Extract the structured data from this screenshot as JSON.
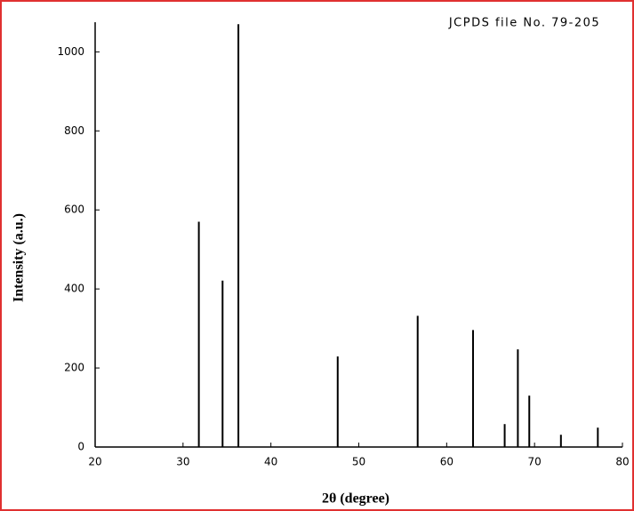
{
  "chart_data": {
    "type": "stick",
    "annotation": "JCPDS file No. 79-205",
    "x_label": "2θ (degree)",
    "y_label": "Intensity (a.u.)",
    "x": [
      31.8,
      34.5,
      36.3,
      47.6,
      56.7,
      63.0,
      66.6,
      68.1,
      69.4,
      73.0,
      77.2
    ],
    "values": [
      570,
      421,
      1070,
      229,
      332,
      296,
      58,
      247,
      130,
      31,
      49
    ],
    "color": "#000000",
    "xlim": [
      20,
      80
    ],
    "xticks": [
      20,
      30,
      40,
      50,
      60,
      70,
      80
    ],
    "ylim": [
      0,
      1075
    ],
    "yticks": [
      0,
      200,
      400,
      600,
      800,
      1000
    ]
  }
}
